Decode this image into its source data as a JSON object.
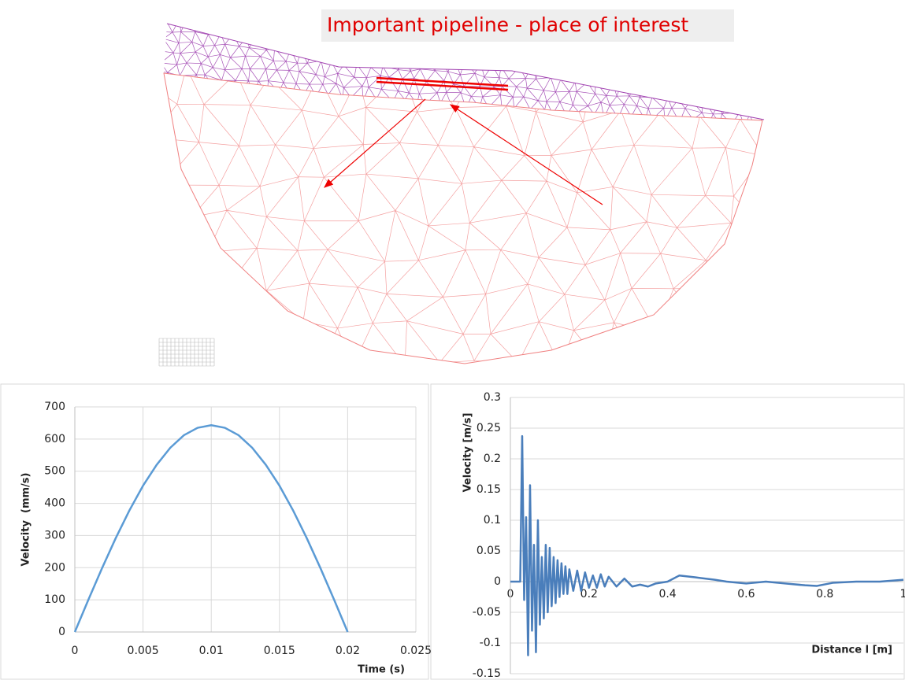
{
  "diagram": {
    "label": "Important pipeline - place of interest"
  },
  "chart_data": [
    {
      "type": "line",
      "x_label": "Time (s)",
      "y_label": "Velocity  (mm/s)",
      "color": "#5b9bd5",
      "grid": true,
      "x": [
        0,
        0.001,
        0.002,
        0.003,
        0.004,
        0.005,
        0.006,
        0.007,
        0.008,
        0.009,
        0.01,
        0.011,
        0.012,
        0.013,
        0.014,
        0.015,
        0.016,
        0.017,
        0.018,
        0.019,
        0.02
      ],
      "values": [
        0,
        101,
        199,
        292,
        378,
        455,
        520,
        573,
        612,
        635,
        643,
        635,
        612,
        573,
        520,
        455,
        378,
        292,
        199,
        101,
        0
      ],
      "xlim": [
        0,
        0.025
      ],
      "xticks": [
        0,
        0.005,
        0.01,
        0.015,
        0.02,
        0.025
      ],
      "ylim": [
        0,
        700
      ],
      "yticks": [
        0,
        100,
        200,
        300,
        400,
        500,
        600,
        700
      ]
    },
    {
      "type": "line",
      "x_label": "Distance l [m]",
      "y_label": "Velocity [m/s]",
      "color": "#4a7ebb",
      "grid": true,
      "x": [
        0,
        0.02,
        0.025,
        0.03,
        0.035,
        0.04,
        0.045,
        0.05,
        0.055,
        0.06,
        0.065,
        0.07,
        0.075,
        0.08,
        0.085,
        0.09,
        0.095,
        0.1,
        0.105,
        0.11,
        0.115,
        0.12,
        0.125,
        0.13,
        0.135,
        0.14,
        0.145,
        0.15,
        0.16,
        0.17,
        0.18,
        0.19,
        0.2,
        0.21,
        0.22,
        0.23,
        0.24,
        0.25,
        0.27,
        0.29,
        0.31,
        0.33,
        0.35,
        0.37,
        0.4,
        0.43,
        0.47,
        0.52,
        0.55,
        0.6,
        0.65,
        0.7,
        0.75,
        0.78,
        0.82,
        0.88,
        0.94,
        1.0
      ],
      "values": [
        0,
        0,
        0,
        0.237,
        -0.03,
        0.105,
        -0.12,
        0.157,
        -0.08,
        0.06,
        -0.115,
        0.1,
        -0.07,
        0.04,
        -0.06,
        0.06,
        -0.05,
        0.055,
        -0.04,
        0.04,
        -0.035,
        0.035,
        -0.025,
        0.03,
        -0.02,
        0.025,
        -0.02,
        0.02,
        -0.015,
        0.018,
        -0.015,
        0.015,
        -0.01,
        0.01,
        -0.01,
        0.012,
        -0.008,
        0.008,
        -0.008,
        0.005,
        -0.008,
        -0.005,
        -0.008,
        -0.003,
        0,
        0.01,
        0.007,
        0.003,
        0,
        -0.003,
        0,
        -0.003,
        -0.006,
        -0.007,
        -0.002,
        0,
        0,
        0.003
      ],
      "xlim": [
        0,
        1
      ],
      "xticks": [
        0,
        0.2,
        0.4,
        0.6,
        0.8,
        1
      ],
      "ylim": [
        -0.15,
        0.3
      ],
      "yticks": [
        -0.15,
        -0.1,
        -0.05,
        0,
        0.05,
        0.1,
        0.15,
        0.2,
        0.25,
        0.3
      ]
    }
  ]
}
